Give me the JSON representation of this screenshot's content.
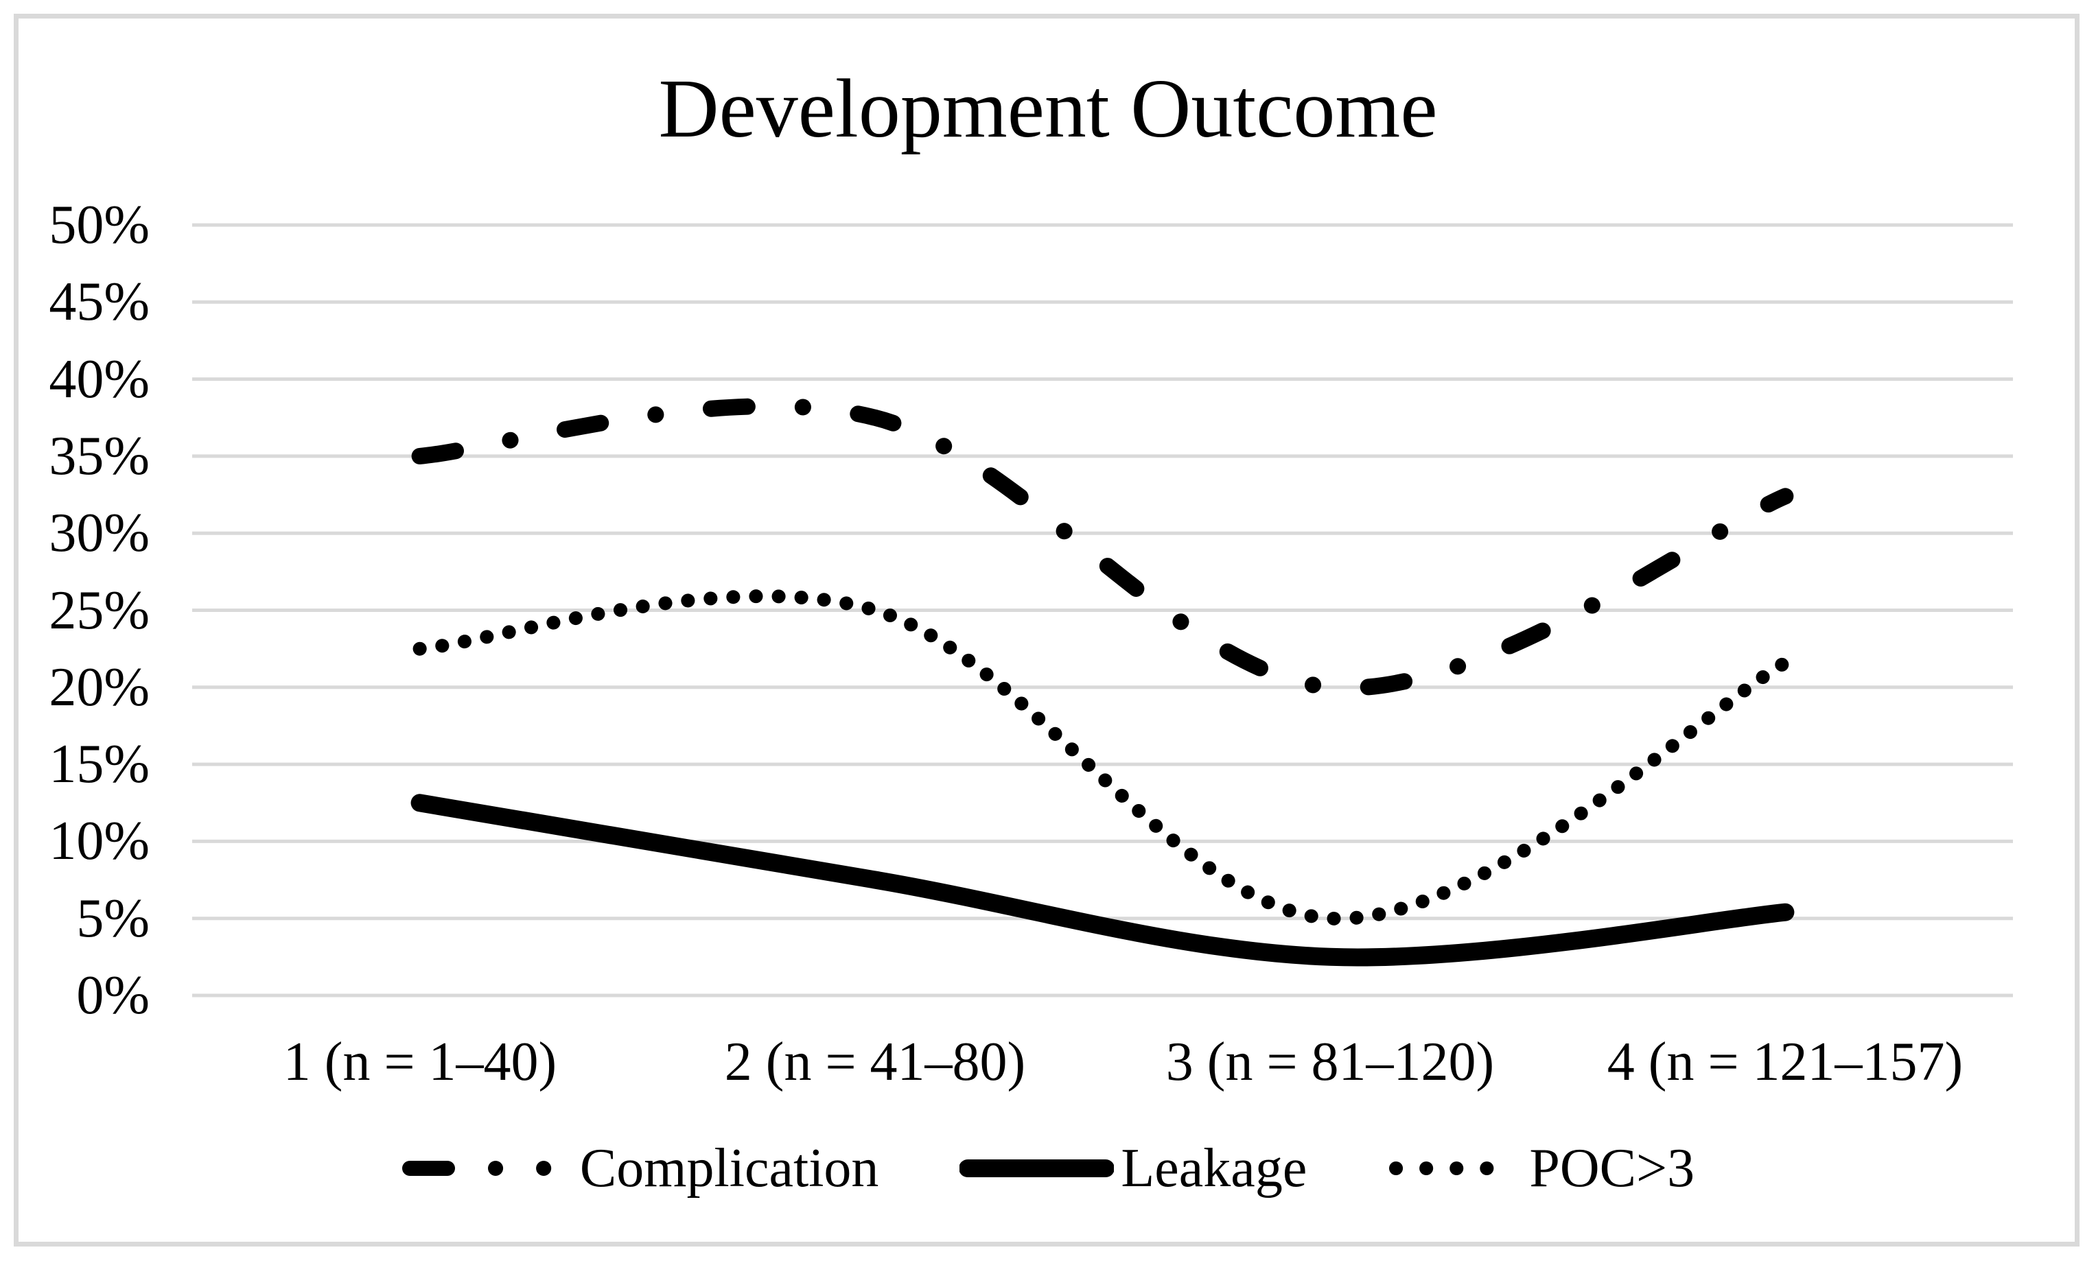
{
  "title": "Development Outcome",
  "chart_data": {
    "type": "line",
    "title": "Development Outcome",
    "categories": [
      "1 (n = 1–40)",
      "2 (n = 41–80)",
      "3 (n = 81–120)",
      "4 (n = 121–157)"
    ],
    "series": [
      {
        "name": "Complication",
        "line_style": "dash-dot",
        "values": [
          35.0,
          37.5,
          20.0,
          32.4
        ]
      },
      {
        "name": "Leakage",
        "line_style": "solid",
        "values": [
          12.5,
          7.5,
          2.5,
          5.4
        ]
      },
      {
        "name": "POC>3",
        "line_style": "dotted",
        "values": [
          22.5,
          25.0,
          5.0,
          21.6
        ]
      }
    ],
    "ylim": [
      0,
      50
    ],
    "ytick_step": 5,
    "ytick_labels": [
      "0%",
      "5%",
      "10%",
      "15%",
      "20%",
      "25%",
      "30%",
      "35%",
      "40%",
      "45%",
      "50%"
    ],
    "grid": "horizontal-only",
    "legend_position": "bottom",
    "line_color": "#000000",
    "gridline_color": "#d9d9d9",
    "frame_color": "#d9d9d9",
    "background": "#ffffff"
  }
}
